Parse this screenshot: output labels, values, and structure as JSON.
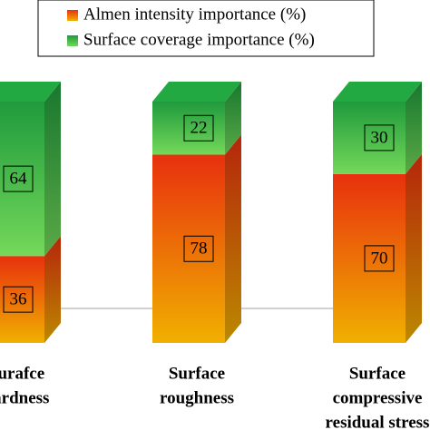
{
  "chart_data": {
    "type": "stacked-bar-3d",
    "categories": [
      [
        "Surafce",
        "hardness"
      ],
      [
        "Surface",
        "roughness"
      ],
      [
        "Surface",
        "compressive",
        "residual stress"
      ]
    ],
    "series": [
      {
        "name": "Almen intensity importance (%)",
        "color": "#e8300e",
        "gradient_to": "#f0b000",
        "values": [
          36,
          78,
          70
        ]
      },
      {
        "name": "Surface coverage importance (%)",
        "color": "#1f9a3c",
        "gradient_to": "#74d85a",
        "values": [
          64,
          22,
          30
        ]
      }
    ]
  }
}
